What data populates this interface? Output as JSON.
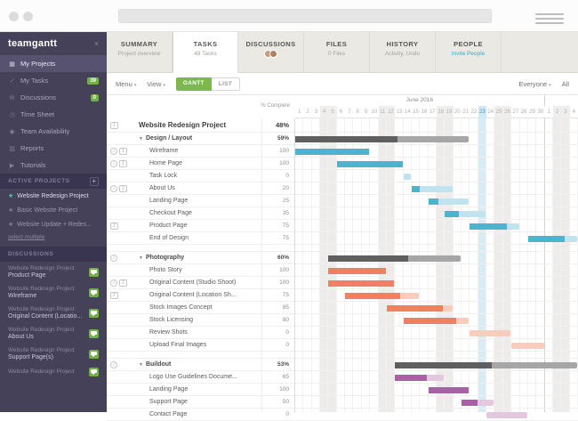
{
  "topbar": {
    "search_value": "",
    "search_placeholder": ""
  },
  "glyphs": {
    "chevron": "▾",
    "collapse": "▼",
    "close": "×",
    "plus": "+",
    "info": "i"
  },
  "sidebar": {
    "logo": "teamgantt",
    "nav": [
      {
        "label": "My Projects",
        "icon": "projects-icon",
        "glyph": "▦",
        "active": true
      },
      {
        "label": "My Tasks",
        "icon": "tasks-icon",
        "glyph": "✓",
        "badge": "39"
      },
      {
        "label": "Discussions",
        "icon": "discussions-icon",
        "glyph": "✉",
        "badge": "0"
      },
      {
        "label": "Time Sheet",
        "icon": "time-sheet-icon",
        "glyph": "◷"
      },
      {
        "label": "Team Availability",
        "icon": "team-availability-icon",
        "glyph": "◉"
      },
      {
        "label": "Reports",
        "icon": "reports-icon",
        "glyph": "▥"
      },
      {
        "label": "Tutorials",
        "icon": "tutorials-icon",
        "glyph": "▶"
      }
    ],
    "active_projects": {
      "title": "ACTIVE PROJECTS",
      "items": [
        {
          "name": "Website Redesign Project",
          "active": true
        },
        {
          "name": "Basic Website Project"
        },
        {
          "name": "Website Update + Redes..."
        }
      ],
      "link": "select multiple"
    },
    "discussions": {
      "title": "DISCUSSIONS",
      "items": [
        {
          "project": "Website Redesign Project",
          "page": "Product Page"
        },
        {
          "project": "Website Redesign Project",
          "page": "Wireframe"
        },
        {
          "project": "Website Redesign Project",
          "page": "Original Content (Locatio..."
        },
        {
          "project": "Website Redesign Project",
          "page": "About Us"
        },
        {
          "project": "Website Redesign Project",
          "page": "Support Page(s)"
        },
        {
          "project": "Website Redesign Project",
          "page": ""
        }
      ]
    }
  },
  "tabs": [
    {
      "label": "SUMMARY",
      "sub": "Project overview"
    },
    {
      "label": "TASKS",
      "sub": "48 Tasks",
      "active": true
    },
    {
      "label": "DISCUSSIONS",
      "avatars": [
        "#c79d7e",
        "#aa8164"
      ]
    },
    {
      "label": "FILES",
      "sub": "0 Files"
    },
    {
      "label": "HISTORY",
      "sub": "Activity, Undo"
    },
    {
      "label": "PEOPLE",
      "sub": "Invite People",
      "link": true
    }
  ],
  "toolbar": {
    "menu": "Menu",
    "view": "View",
    "gantt": "GANTT",
    "list": "LIST",
    "everyone": "Everyone",
    "all": "All"
  },
  "gantt": {
    "percent_header": "% Complete",
    "month_label": "June 2016",
    "june_days": 30,
    "total_days": 34,
    "today": 23,
    "weekends": [
      4,
      5,
      11,
      12,
      18,
      19,
      25,
      26,
      32,
      33
    ],
    "palettes": {
      "teal": {
        "dark": "#4cb4cd",
        "light": "#bfe4ef"
      },
      "orange": {
        "dark": "#f08060",
        "light": "#f9cdbb"
      },
      "purple": {
        "dark": "#ad5fa5",
        "light": "#e3c8e0"
      },
      "gray": {
        "dark": "#5f5f5f",
        "light": "#a6a6a6"
      }
    },
    "rows": [
      {
        "type": "project",
        "name": "Website Redesign Project",
        "pct": "48%",
        "comments": 1
      },
      {
        "type": "group",
        "name": "Design / Layout",
        "pct": "59%",
        "bar": {
          "start": 1,
          "end": 21,
          "complete": 59,
          "palette": "gray"
        }
      },
      {
        "type": "task",
        "name": "Wireframe",
        "pct": "100",
        "info": true,
        "comments": 1,
        "bar": {
          "start": 1,
          "end": 9,
          "complete": 100,
          "palette": "teal"
        }
      },
      {
        "type": "task",
        "name": "Home Page",
        "pct": "100",
        "info": true,
        "comments": 1,
        "bar": {
          "start": 6,
          "end": 13,
          "complete": 100,
          "palette": "teal"
        }
      },
      {
        "type": "task",
        "name": "Task Lock",
        "pct": "0",
        "bar": {
          "start": 14,
          "end": 14,
          "complete": 0,
          "palette": "teal"
        }
      },
      {
        "type": "task",
        "name": "About Us",
        "pct": "20",
        "info": true,
        "comments": 2,
        "bar": {
          "start": 15,
          "end": 19,
          "complete": 20,
          "palette": "teal"
        }
      },
      {
        "type": "task",
        "name": "Landing Page",
        "pct": "25",
        "bar": {
          "start": 17,
          "end": 21,
          "complete": 25,
          "palette": "teal"
        }
      },
      {
        "type": "task",
        "name": "Checkout Page",
        "pct": "35",
        "bar": {
          "start": 19,
          "end": 23,
          "complete": 35,
          "palette": "teal"
        }
      },
      {
        "type": "task",
        "name": "Product Page",
        "pct": "75",
        "comments": 2,
        "bar": {
          "start": 22,
          "end": 27,
          "complete": 75,
          "palette": "teal"
        }
      },
      {
        "type": "task",
        "name": "End of Design",
        "pct": "75",
        "bar": {
          "start": 29,
          "end": 34,
          "complete": 75,
          "palette": "teal"
        }
      },
      {
        "type": "gap"
      },
      {
        "type": "group",
        "name": "Photography",
        "pct": "60%",
        "info": true,
        "bar": {
          "start": 5,
          "end": 20,
          "complete": 60,
          "palette": "gray"
        }
      },
      {
        "type": "task",
        "name": "Photo Story",
        "pct": "100",
        "bar": {
          "start": 5,
          "end": 11,
          "complete": 100,
          "palette": "orange"
        }
      },
      {
        "type": "task",
        "name": "Original Content (Studio Shoot)",
        "pct": "100",
        "info": true,
        "comments": 2,
        "bar": {
          "start": 5,
          "end": 12,
          "complete": 100,
          "palette": "orange"
        }
      },
      {
        "type": "task",
        "name": "Original Content (Location Sh...",
        "pct": "75",
        "comments": 2,
        "bar": {
          "start": 7,
          "end": 15,
          "complete": 75,
          "palette": "orange"
        }
      },
      {
        "type": "task",
        "name": "Stock Images Concept",
        "pct": "85",
        "bar": {
          "start": 12,
          "end": 19,
          "complete": 85,
          "palette": "orange"
        }
      },
      {
        "type": "task",
        "name": "Stock Licensing",
        "pct": "80",
        "bar": {
          "start": 14,
          "end": 21,
          "complete": 80,
          "palette": "orange"
        }
      },
      {
        "type": "task",
        "name": "Review Shots",
        "pct": "0",
        "bar": {
          "start": 22,
          "end": 26,
          "complete": 0,
          "palette": "orange"
        }
      },
      {
        "type": "task",
        "name": "Upload Final Images",
        "pct": "0",
        "bar": {
          "start": 27,
          "end": 30,
          "complete": 0,
          "palette": "orange"
        }
      },
      {
        "type": "gap"
      },
      {
        "type": "group",
        "name": "Buildout",
        "pct": "53%",
        "info": true,
        "bar": {
          "start": 13,
          "end": 34,
          "complete": 53,
          "palette": "gray"
        }
      },
      {
        "type": "task",
        "name": "Logo Use Guidelines Docume...",
        "pct": "65",
        "bar": {
          "start": 13,
          "end": 18,
          "complete": 65,
          "palette": "purple"
        }
      },
      {
        "type": "task",
        "name": "Landing Page",
        "pct": "100",
        "bar": {
          "start": 17,
          "end": 21,
          "complete": 100,
          "palette": "purple"
        }
      },
      {
        "type": "task",
        "name": "Support Page",
        "pct": "50",
        "bar": {
          "start": 21,
          "end": 24,
          "complete": 50,
          "palette": "purple"
        }
      },
      {
        "type": "task",
        "name": "Contact Page",
        "pct": "0",
        "bar": {
          "start": 24,
          "end": 28,
          "complete": 0,
          "palette": "purple"
        }
      }
    ]
  },
  "colors": {
    "accent_green": "#72b147",
    "sidebar_bg": "#454159",
    "today_blue": "#d8ecf6"
  }
}
